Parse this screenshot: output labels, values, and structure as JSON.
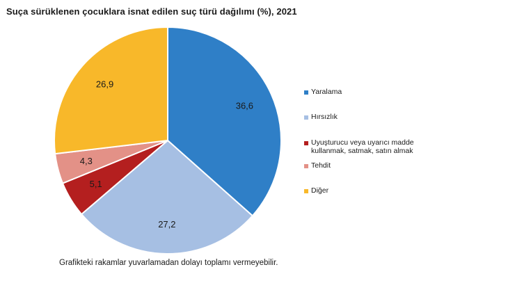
{
  "chart_data": {
    "type": "pie",
    "title": "Suça sürüklenen çocuklara isnat edilen suç türü dağılımı (%), 2021",
    "categories": [
      "Yaralama",
      "Hırsızlık",
      "Uyuşturucu veya uyarıcı madde\nkullanmak, satmak, satın almak",
      "Tehdit",
      "Diğer"
    ],
    "values": [
      36.6,
      27.2,
      5.1,
      4.3,
      26.9
    ],
    "data_labels": [
      "36,6",
      "27,2",
      "5,1",
      "4,3",
      "26,9"
    ],
    "colors": [
      "#2F7FC7",
      "#A6BFE3",
      "#B41F1F",
      "#E39187",
      "#F8B82A"
    ],
    "start_angle_deg": 0,
    "direction": "clockwise",
    "legend_position": "right",
    "footnote": "Grafikteki rakamlar yuvarlamadan dolayı toplamı vermeyebilir."
  }
}
